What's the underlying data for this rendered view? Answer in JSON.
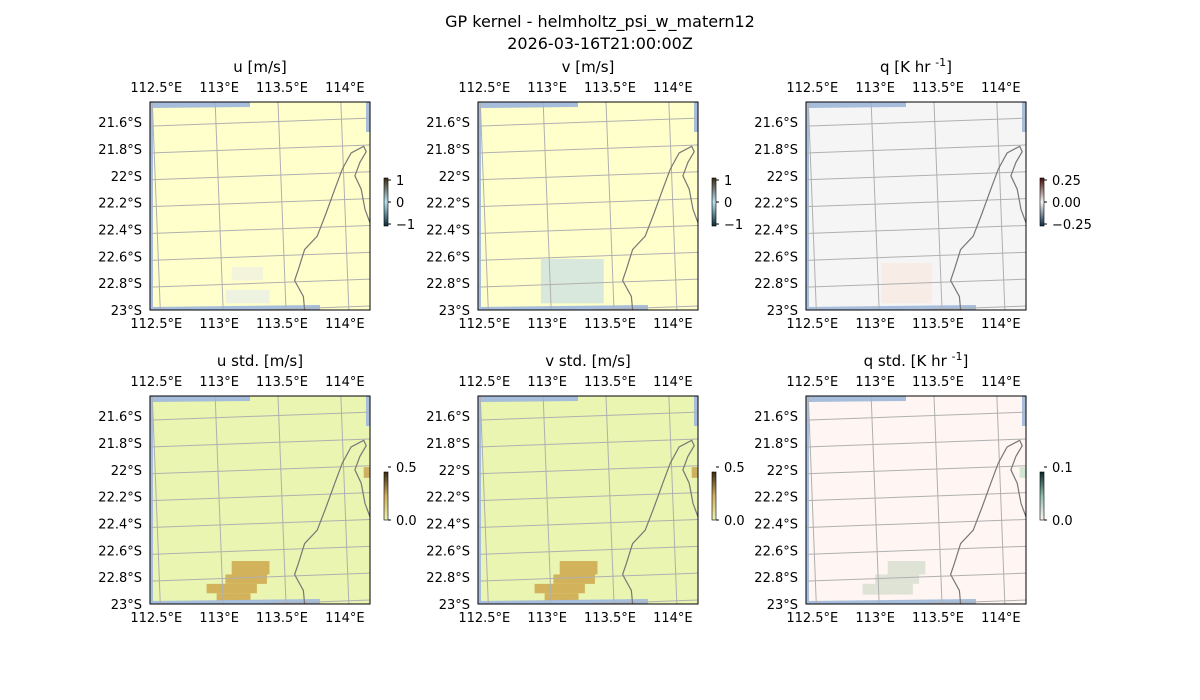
{
  "figure": {
    "title": "GP kernel - helmholtz_psi_w_matern12",
    "subtitle": "2026-03-16T21:00:00Z"
  },
  "chart_data": [
    {
      "type": "heatmap",
      "title": "u [m/s]",
      "xticks": [
        "112.5°E",
        "113°E",
        "113.5°E",
        "114°E"
      ],
      "yticks": [
        "21.6°S",
        "21.8°S",
        "22°S",
        "22.2°S",
        "22.4°S",
        "22.6°S",
        "22.8°S",
        "23°S"
      ],
      "xlim": [
        112.45,
        114.2
      ],
      "ylim": [
        -23.0,
        -21.45
      ],
      "background_color": "#ffffcc",
      "colorbar": {
        "ticks": [
          "1",
          "0",
          "−1"
        ],
        "range": [
          -1,
          1
        ],
        "colors": [
          "#3a2a10",
          "#b5e2ee",
          "#0b2b3a"
        ]
      },
      "anomalies": [
        {
          "lon": [
            113.05,
            113.4
          ],
          "lat": [
            -22.95,
            -22.85
          ],
          "value": 0.1,
          "color": "#eef2e0"
        },
        {
          "lon": [
            113.1,
            113.35
          ],
          "lat": [
            -22.78,
            -22.68
          ],
          "value": 0.05,
          "color": "#f4f4dc"
        }
      ]
    },
    {
      "type": "heatmap",
      "title": "v [m/s]",
      "xticks": [
        "112.5°E",
        "113°E",
        "113.5°E",
        "114°E"
      ],
      "yticks": [
        "21.6°S",
        "21.8°S",
        "22°S",
        "22.2°S",
        "22.4°S",
        "22.6°S",
        "22.8°S",
        "23°S"
      ],
      "xlim": [
        112.45,
        114.2
      ],
      "ylim": [
        -23.0,
        -21.45
      ],
      "background_color": "#ffffcc",
      "colorbar": {
        "ticks": [
          "1",
          "0",
          "−1"
        ],
        "range": [
          -1,
          1
        ],
        "colors": [
          "#3a2a10",
          "#b5e2ee",
          "#0b2b3a"
        ]
      },
      "anomalies": [
        {
          "lon": [
            112.95,
            113.45
          ],
          "lat": [
            -22.95,
            -22.62
          ],
          "value": 0.15,
          "color": "#d8e8dc"
        }
      ]
    },
    {
      "type": "heatmap",
      "title": "q [K hr $^{-1}$]",
      "xticks": [
        "112.5°E",
        "113°E",
        "113.5°E",
        "114°E"
      ],
      "yticks": [
        "21.6°S",
        "21.8°S",
        "22°S",
        "22.2°S",
        "22.4°S",
        "22.6°S",
        "22.8°S",
        "23°S"
      ],
      "xlim": [
        112.45,
        114.2
      ],
      "ylim": [
        -23.0,
        -21.45
      ],
      "background_color": "#f5f5f5",
      "colorbar": {
        "ticks": [
          "0.25",
          "0.00",
          "−0.25"
        ],
        "range": [
          -0.35,
          0.35
        ],
        "colors": [
          "#4a0a0a",
          "#f5f5f5",
          "#0a2a4a"
        ]
      },
      "anomalies": [
        {
          "lon": [
            113.05,
            113.45
          ],
          "lat": [
            -22.95,
            -22.65
          ],
          "value": 0.02,
          "color": "#f8ece6"
        }
      ]
    },
    {
      "type": "heatmap",
      "title": "u std. [m/s]",
      "xticks": [
        "112.5°E",
        "113°E",
        "113.5°E",
        "114°E"
      ],
      "yticks": [
        "21.6°S",
        "21.8°S",
        "22°S",
        "22.2°S",
        "22.4°S",
        "22.6°S",
        "22.8°S",
        "23°S"
      ],
      "xlim": [
        112.45,
        114.2
      ],
      "ylim": [
        -23.0,
        -21.45
      ],
      "background_color": "#e9f5b0",
      "colorbar": {
        "ticks": [
          "0.5",
          "0.0"
        ],
        "range": [
          0,
          0.6
        ],
        "colors": [
          "#3a2a10",
          "#d2b060",
          "#e9f5b0"
        ]
      },
      "anomalies": [
        {
          "lon": [
            113.1,
            113.4
          ],
          "lat": [
            -22.78,
            -22.68
          ],
          "value": 0.45,
          "color": "#d2b25a"
        },
        {
          "lon": [
            113.05,
            113.38
          ],
          "lat": [
            -22.85,
            -22.78
          ],
          "value": 0.45,
          "color": "#d2b25a"
        },
        {
          "lon": [
            112.9,
            113.3
          ],
          "lat": [
            -22.92,
            -22.85
          ],
          "value": 0.45,
          "color": "#d2b25a"
        },
        {
          "lon": [
            112.98,
            113.25
          ],
          "lat": [
            -23.0,
            -22.92
          ],
          "value": 0.45,
          "color": "#d2b25a"
        },
        {
          "lon": [
            114.15,
            114.2
          ],
          "lat": [
            -22.06,
            -21.98
          ],
          "value": 0.5,
          "color": "#cdb060"
        }
      ]
    },
    {
      "type": "heatmap",
      "title": "v std. [m/s]",
      "xticks": [
        "112.5°E",
        "113°E",
        "113.5°E",
        "114°E"
      ],
      "yticks": [
        "21.6°S",
        "21.8°S",
        "22°S",
        "22.2°S",
        "22.4°S",
        "22.6°S",
        "22.8°S",
        "23°S"
      ],
      "xlim": [
        112.45,
        114.2
      ],
      "ylim": [
        -23.0,
        -21.45
      ],
      "background_color": "#e9f5b0",
      "colorbar": {
        "ticks": [
          "0.5",
          "0.0"
        ],
        "range": [
          0,
          0.6
        ],
        "colors": [
          "#3a2a10",
          "#d2b060",
          "#e9f5b0"
        ]
      },
      "anomalies": [
        {
          "lon": [
            113.1,
            113.4
          ],
          "lat": [
            -22.78,
            -22.68
          ],
          "value": 0.45,
          "color": "#d2b25a"
        },
        {
          "lon": [
            113.05,
            113.38
          ],
          "lat": [
            -22.85,
            -22.78
          ],
          "value": 0.45,
          "color": "#d2b25a"
        },
        {
          "lon": [
            112.9,
            113.3
          ],
          "lat": [
            -22.92,
            -22.85
          ],
          "value": 0.45,
          "color": "#d2b25a"
        },
        {
          "lon": [
            112.98,
            113.25
          ],
          "lat": [
            -23.0,
            -22.92
          ],
          "value": 0.45,
          "color": "#d2b25a"
        },
        {
          "lon": [
            114.15,
            114.2
          ],
          "lat": [
            -22.06,
            -21.98
          ],
          "value": 0.5,
          "color": "#cdb060"
        }
      ]
    },
    {
      "type": "heatmap",
      "title": "q std. [K hr $^{-1}$]",
      "xticks": [
        "112.5°E",
        "113°E",
        "113.5°E",
        "114°E"
      ],
      "yticks": [
        "21.6°S",
        "21.8°S",
        "22°S",
        "22.2°S",
        "22.4°S",
        "22.6°S",
        "22.8°S",
        "23°S"
      ],
      "xlim": [
        112.45,
        114.2
      ],
      "ylim": [
        -23.0,
        -21.45
      ],
      "background_color": "#fff5f2",
      "colorbar": {
        "ticks": [
          "0.1",
          "0.0"
        ],
        "range": [
          0,
          0.12
        ],
        "colors": [
          "#0a2a2a",
          "#8fc0b0",
          "#fff5f2"
        ]
      },
      "anomalies": [
        {
          "lon": [
            113.1,
            113.4
          ],
          "lat": [
            -22.78,
            -22.68
          ],
          "value": 0.03,
          "color": "#dfe3d6"
        },
        {
          "lon": [
            113.0,
            113.35
          ],
          "lat": [
            -22.85,
            -22.78
          ],
          "value": 0.03,
          "color": "#dfe3d6"
        },
        {
          "lon": [
            112.9,
            113.3
          ],
          "lat": [
            -22.93,
            -22.85
          ],
          "value": 0.03,
          "color": "#dfe3d6"
        },
        {
          "lon": [
            114.15,
            114.2
          ],
          "lat": [
            -22.06,
            -21.98
          ],
          "value": 0.04,
          "color": "#d0e6d0"
        }
      ]
    }
  ]
}
